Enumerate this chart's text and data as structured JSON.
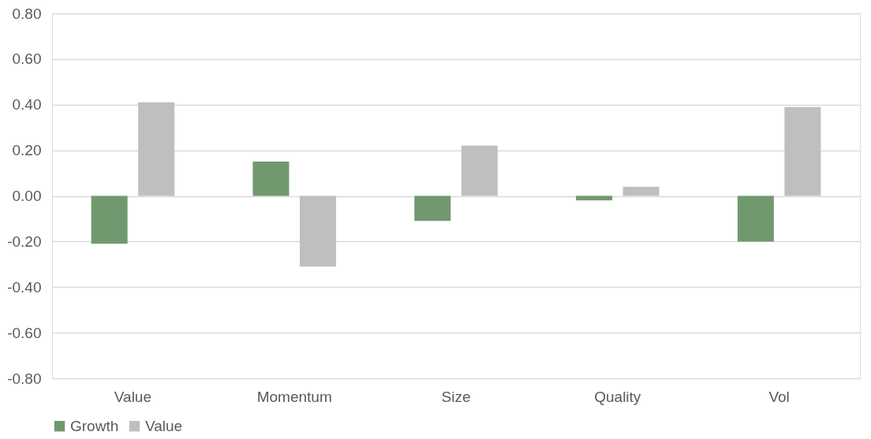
{
  "chart_data": {
    "type": "bar",
    "categories": [
      "Value",
      "Momentum",
      "Size",
      "Quality",
      "Vol"
    ],
    "series": [
      {
        "name": "Growth",
        "color": "#70996f",
        "values": [
          -0.21,
          0.15,
          -0.11,
          -0.02,
          -0.2
        ]
      },
      {
        "name": "Value",
        "color": "#bfbfbf",
        "values": [
          0.41,
          -0.31,
          0.22,
          0.04,
          0.39
        ]
      }
    ],
    "ylim": [
      -0.8,
      0.8
    ],
    "yticks": [
      {
        "value": -0.8,
        "label": "-0.80"
      },
      {
        "value": -0.6,
        "label": "-0.60"
      },
      {
        "value": -0.4,
        "label": "-0.40"
      },
      {
        "value": -0.2,
        "label": "-0.20"
      },
      {
        "value": 0,
        "label": "0.00"
      },
      {
        "value": 0.2,
        "label": "0.20"
      },
      {
        "value": 0.4,
        "label": "0.40"
      },
      {
        "value": 0.6,
        "label": "0.60"
      },
      {
        "value": 0.8,
        "label": "0.80"
      }
    ],
    "grid": "y",
    "legend": "bottom"
  }
}
